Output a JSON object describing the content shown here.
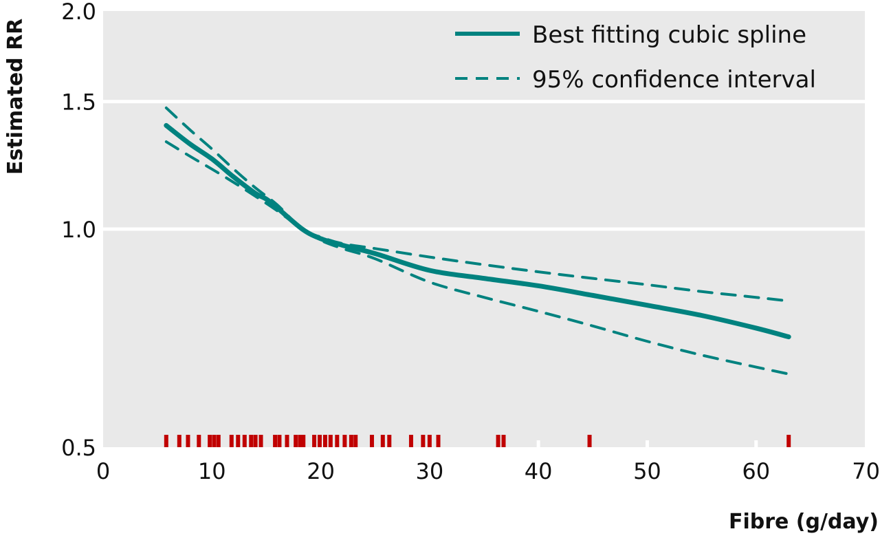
{
  "chart_data": {
    "type": "line",
    "title": "",
    "xlabel": "Fibre (g/day)",
    "ylabel": "Estimated RR",
    "xlim": [
      0,
      70
    ],
    "ylim": [
      0.5,
      2.0
    ],
    "yscale": "log",
    "grid": true,
    "legend_position": "top-right",
    "x_ticks": [
      0,
      10,
      20,
      30,
      40,
      50,
      60,
      70
    ],
    "x_tick_labels": [
      "0",
      "10",
      "20",
      "30",
      "40",
      "50",
      "60",
      "70"
    ],
    "y_ticks": [
      0.5,
      1.0,
      1.5,
      2.0
    ],
    "y_tick_labels": [
      "0.5",
      "1.0",
      "1.5",
      "2.0"
    ],
    "colors": {
      "background": "#e9e9e9",
      "gridline": "#ffffff",
      "line": "#00827f",
      "rug": "#c00000"
    },
    "series": [
      {
        "name": "Best fitting cubic spline",
        "style": "solid",
        "x": [
          5.8,
          8,
          10,
          12,
          14,
          15,
          16,
          18.3,
          20,
          22,
          25,
          30,
          35,
          40,
          45,
          50,
          55,
          60,
          63.0
        ],
        "y": [
          1.39,
          1.31,
          1.25,
          1.18,
          1.12,
          1.1,
          1.07,
          1.0,
          0.97,
          0.95,
          0.925,
          0.877,
          0.855,
          0.835,
          0.81,
          0.785,
          0.76,
          0.73,
          0.71
        ]
      },
      {
        "name": "95% confidence interval (upper)",
        "style": "dashed",
        "x": [
          5.8,
          8,
          10,
          12,
          14,
          16,
          18.3,
          20,
          22,
          25,
          30,
          35,
          40,
          45,
          50,
          55,
          60,
          63.2
        ],
        "y": [
          1.47,
          1.37,
          1.29,
          1.21,
          1.14,
          1.08,
          1.0,
          0.975,
          0.955,
          0.94,
          0.915,
          0.893,
          0.873,
          0.855,
          0.838,
          0.82,
          0.805,
          0.795
        ]
      },
      {
        "name": "95% confidence interval (lower)",
        "style": "dashed",
        "x": [
          5.8,
          8,
          10,
          12,
          14,
          16,
          18.3,
          20,
          22,
          25,
          30,
          35,
          40,
          45,
          50,
          55,
          60,
          63.2
        ],
        "y": [
          1.32,
          1.26,
          1.21,
          1.16,
          1.11,
          1.06,
          1.0,
          0.965,
          0.94,
          0.91,
          0.845,
          0.805,
          0.77,
          0.735,
          0.7,
          0.67,
          0.645,
          0.63
        ]
      }
    ],
    "legend": [
      {
        "label": "Best fitting cubic spline",
        "style": "solid"
      },
      {
        "label": "95% confidence interval",
        "style": "dashed"
      }
    ],
    "rug": [
      5.8,
      7.0,
      7.8,
      8.8,
      9.8,
      10.2,
      10.6,
      11.8,
      12.4,
      13.0,
      13.6,
      14.0,
      14.5,
      15.8,
      16.2,
      16.9,
      17.7,
      18.1,
      18.4,
      19.4,
      19.9,
      20.4,
      20.9,
      21.5,
      22.2,
      22.8,
      23.2,
      24.7,
      25.7,
      26.3,
      28.3,
      29.4,
      30.0,
      30.8,
      36.3,
      36.8,
      44.7,
      63.0
    ]
  }
}
